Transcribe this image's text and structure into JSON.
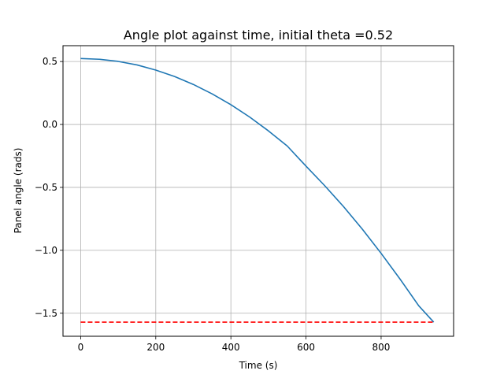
{
  "chart_data": {
    "type": "line",
    "title": "Angle plot against time, initial theta =0.52",
    "xlabel": "Time (s)",
    "ylabel": "Panel angle (rads)",
    "xlim": [
      -47,
      993
    ],
    "ylim": [
      -1.683,
      0.626
    ],
    "xticks": [
      0,
      200,
      400,
      600,
      800
    ],
    "xtick_labels": [
      "0",
      "200",
      "400",
      "600",
      "800"
    ],
    "yticks": [
      0.5,
      0.0,
      -0.5,
      -1.0,
      -1.5
    ],
    "ytick_labels": [
      "0.5",
      "0.0",
      "−0.5",
      "−1.0",
      "−1.5"
    ],
    "grid": true,
    "series": [
      {
        "line_color": "#1f77b4",
        "line_style": "solid",
        "x": [
          0,
          50,
          100,
          150,
          200,
          250,
          300,
          350,
          400,
          450,
          500,
          550,
          600,
          650,
          700,
          750,
          800,
          850,
          900,
          940
        ],
        "y": [
          0.524,
          0.518,
          0.501,
          0.473,
          0.432,
          0.381,
          0.318,
          0.243,
          0.157,
          0.059,
          -0.051,
          -0.171,
          -0.331,
          -0.487,
          -0.653,
          -0.832,
          -1.024,
          -1.227,
          -1.44,
          -1.571
        ]
      },
      {
        "line_color": "#ff0000",
        "line_style": "dashed",
        "x": [
          0,
          940
        ],
        "y": [
          -1.571,
          -1.571
        ]
      }
    ]
  }
}
